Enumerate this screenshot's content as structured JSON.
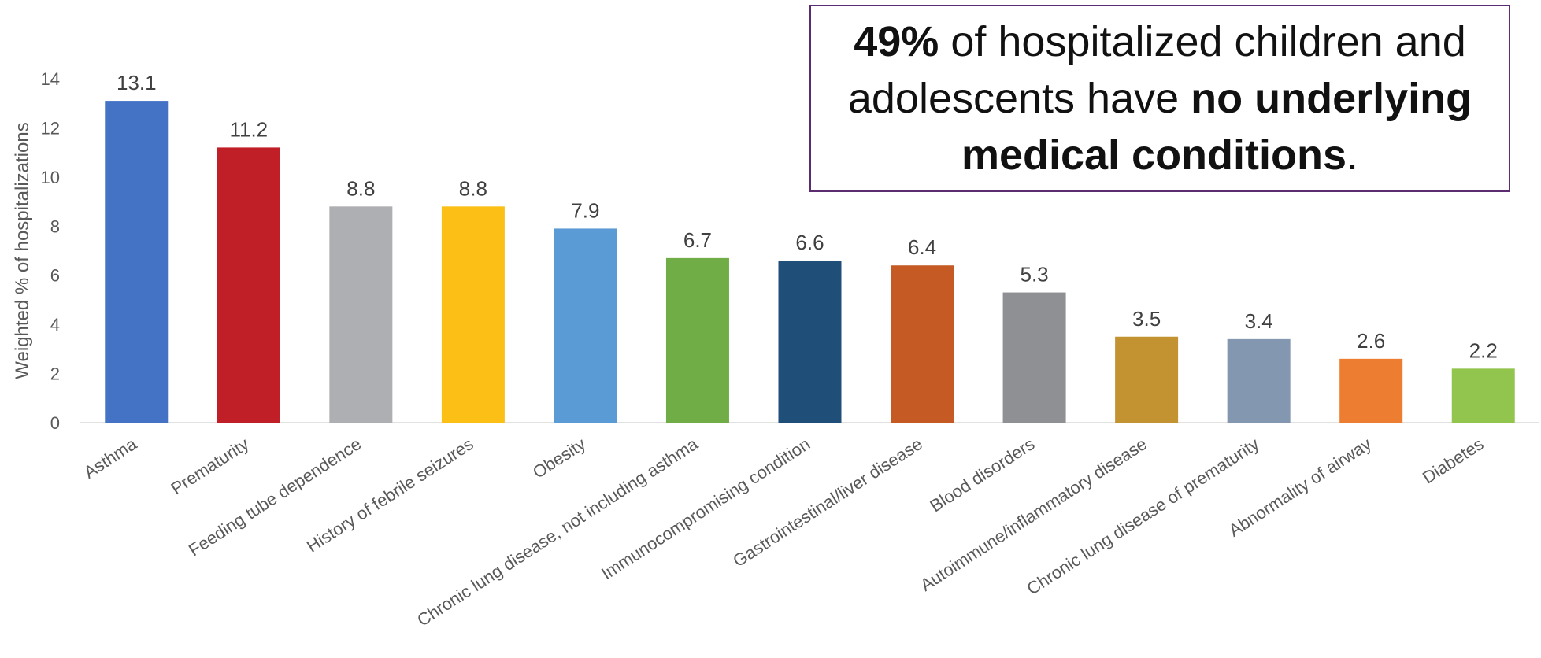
{
  "chart_data": {
    "type": "bar",
    "ylabel": "Weighted % of hospitalizations",
    "ylim": [
      0,
      14
    ],
    "yticks": [
      0,
      2,
      4,
      6,
      8,
      10,
      12,
      14
    ],
    "grid": false,
    "categories": [
      "Asthma",
      "Prematurity",
      "Feeding tube dependence",
      "History of febrile seizures",
      "Obesity",
      "Chronic lung disease, not including asthma",
      "Immunocompromising condition",
      "Gastrointestinal/liver disease",
      "Blood disorders",
      "Autoimmune/inflammatory disease",
      "Chronic lung disease of prematurity",
      "Abnormality of airway",
      "Diabetes"
    ],
    "values": [
      13.1,
      11.2,
      8.8,
      8.8,
      7.9,
      6.7,
      6.6,
      6.4,
      5.3,
      3.5,
      3.4,
      2.6,
      2.2
    ],
    "value_labels": [
      "13.1",
      "11.2",
      "8.8",
      "8.8",
      "7.9",
      "6.7",
      "6.6",
      "6.4",
      "5.3",
      "3.5",
      "3.4",
      "2.6",
      "2.2"
    ],
    "colors": [
      "#4472c4",
      "#c01f28",
      "#aeafb2",
      "#fbbf16",
      "#5b9bd5",
      "#70ad47",
      "#1f4e79",
      "#c55a24",
      "#8f9093",
      "#c29330",
      "#8497b0",
      "#ed7d31",
      "#92c54e"
    ]
  },
  "callout": {
    "part1_bold": "49%",
    "part2": " of hospitalized children and adolescents have ",
    "part3_bold": "no underlying medical conditions",
    "part4": "."
  }
}
